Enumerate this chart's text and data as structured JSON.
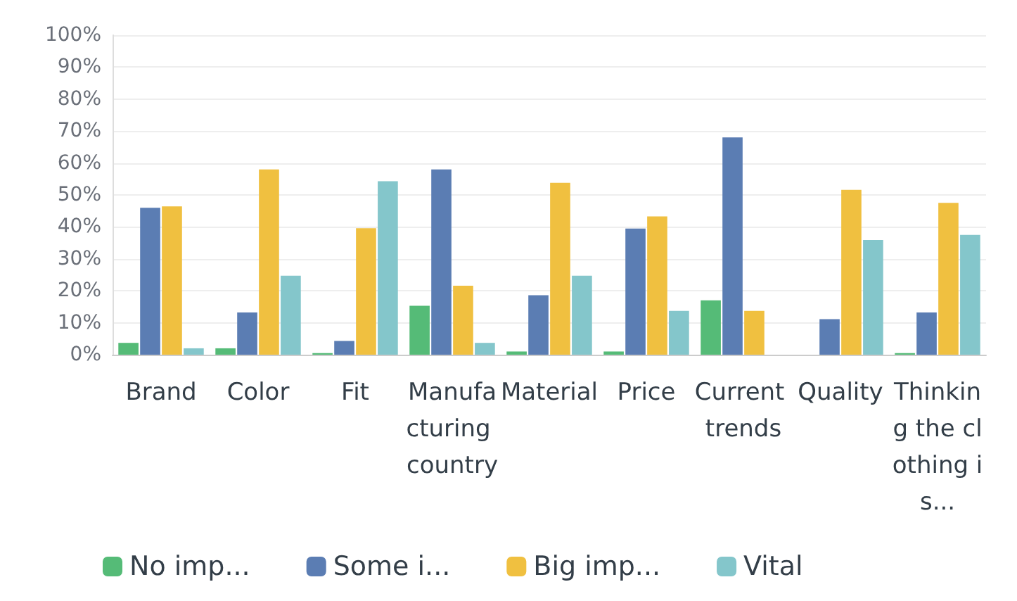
{
  "chart_data": {
    "type": "bar",
    "categories": [
      "Brand",
      "Color",
      "Fit",
      "Manufacturing country",
      "Material",
      "Price",
      "Current trends",
      "Quality",
      "Thinking the clothing is..."
    ],
    "series": [
      {
        "name": "No imp...",
        "color": "#55bb77",
        "values": [
          3.7,
          2,
          0.5,
          15.3,
          1,
          1,
          17,
          0,
          0.5
        ]
      },
      {
        "name": "Some i...",
        "color": "#5b7db3",
        "values": [
          46,
          13.2,
          4.3,
          58,
          18.6,
          39.5,
          68,
          11.1,
          13.2
        ]
      },
      {
        "name": "Big imp...",
        "color": "#f0c040",
        "values": [
          46.4,
          58,
          39.6,
          21.6,
          53.8,
          43.3,
          13.7,
          51.6,
          47.5
        ]
      },
      {
        "name": "Vital",
        "color": "#84c6cb",
        "values": [
          2,
          24.7,
          54.3,
          3.7,
          24.7,
          13.7,
          0,
          35.9,
          37.5
        ]
      }
    ],
    "ylim": [
      0,
      100
    ],
    "yticks": [
      {
        "value": 0,
        "label": "0%"
      },
      {
        "value": 10,
        "label": "10%"
      },
      {
        "value": 20,
        "label": "20%"
      },
      {
        "value": 30,
        "label": "30%"
      },
      {
        "value": 40,
        "label": "40%"
      },
      {
        "value": 50,
        "label": "50%"
      },
      {
        "value": 60,
        "label": "60%"
      },
      {
        "value": 70,
        "label": "70%"
      },
      {
        "value": 80,
        "label": "80%"
      },
      {
        "value": 90,
        "label": "90%"
      },
      {
        "value": 100,
        "label": "100%"
      }
    ],
    "grid": "y",
    "legend": "bottom"
  }
}
